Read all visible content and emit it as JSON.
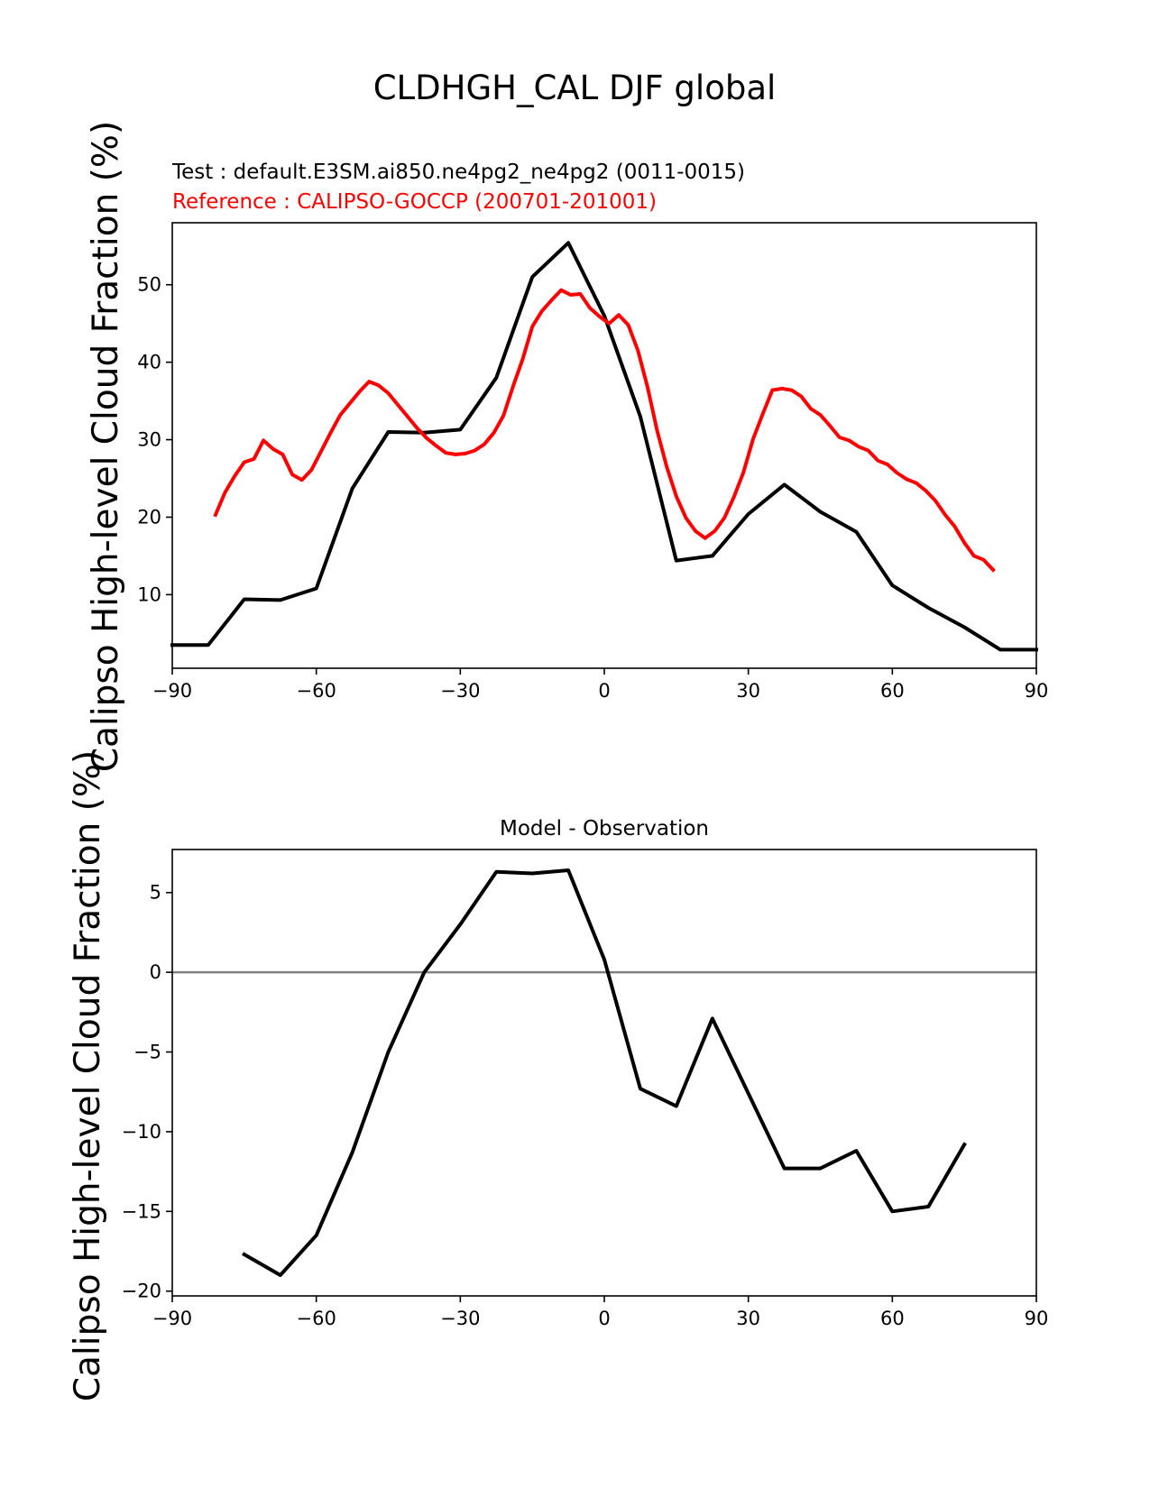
{
  "suptitle": "CLDHGH_CAL DJF global",
  "chart_data": [
    {
      "type": "line",
      "test_label": "Test : default.E3SM.ai850.ne4pg2_ne4pg2 (0011-0015)",
      "ref_label": "Reference : CALIPSO-GOCCP (200701-201001)",
      "ylabel": "Calipso High-level Cloud Fraction (%)",
      "xlim": [
        -90,
        90
      ],
      "ylim": [
        0.5,
        58
      ],
      "xticks": [
        -90,
        -60,
        -30,
        0,
        30,
        60,
        90
      ],
      "xtick_labels": [
        "−90",
        "−60",
        "−30",
        "0",
        "30",
        "60",
        "90"
      ],
      "yticks": [
        10,
        20,
        30,
        40,
        50
      ],
      "ytick_labels": [
        "10",
        "20",
        "30",
        "40",
        "50"
      ],
      "series": [
        {
          "name": "Test",
          "color": "#000000",
          "x": [
            -90,
            -82.5,
            -75,
            -67.5,
            -60,
            -52.5,
            -45,
            -37.5,
            -30,
            -22.5,
            -15,
            -7.5,
            0,
            7.5,
            15,
            22.5,
            30,
            37.5,
            45,
            52.5,
            60,
            67.5,
            75,
            82.5,
            90
          ],
          "y": [
            3.5,
            3.5,
            9.4,
            9.3,
            10.8,
            23.7,
            31.0,
            30.9,
            31.3,
            38.0,
            51.0,
            55.4,
            46.0,
            33.0,
            14.4,
            15.0,
            20.4,
            24.2,
            20.7,
            18.1,
            11.2,
            8.3,
            5.8,
            2.9,
            2.9
          ]
        },
        {
          "name": "Reference",
          "color": "#ff0000",
          "x": [
            -81,
            -79,
            -77,
            -75,
            -73,
            -71,
            -69,
            -67,
            -65,
            -63,
            -61,
            -59,
            -57,
            -55,
            -53,
            -51,
            -49,
            -47,
            -45,
            -43,
            -41,
            -39,
            -37,
            -35,
            -33,
            -31,
            -29,
            -27,
            -25,
            -23,
            -21,
            -19,
            -17,
            -15,
            -13,
            -11,
            -9,
            -7,
            -5,
            -3,
            -1,
            1,
            3,
            5,
            7,
            9,
            11,
            13,
            15,
            17,
            19,
            21,
            23,
            25,
            27,
            29,
            31,
            33,
            35,
            37,
            39,
            41,
            43,
            45,
            47,
            49,
            51,
            53,
            55,
            57,
            59,
            61,
            63,
            65,
            67,
            69,
            71,
            73,
            75,
            77,
            79,
            81
          ],
          "y": [
            20.3,
            23.2,
            25.3,
            27.1,
            27.5,
            29.9,
            28.8,
            28.1,
            25.5,
            24.8,
            26.1,
            28.5,
            30.9,
            33.2,
            34.7,
            36.2,
            37.5,
            37.0,
            36.0,
            34.5,
            33.0,
            31.5,
            30.2,
            29.2,
            28.3,
            28.1,
            28.2,
            28.6,
            29.4,
            30.9,
            33.1,
            36.9,
            40.4,
            44.6,
            46.6,
            48.0,
            49.3,
            48.7,
            48.8,
            47.0,
            45.9,
            45.0,
            46.1,
            44.8,
            41.5,
            36.8,
            31.2,
            26.5,
            22.7,
            19.9,
            18.2,
            17.3,
            18.2,
            19.9,
            22.6,
            25.8,
            30.1,
            33.3,
            36.4,
            36.6,
            36.4,
            35.6,
            34.0,
            33.2,
            31.8,
            30.3,
            29.9,
            29.1,
            28.6,
            27.3,
            26.8,
            25.7,
            24.9,
            24.4,
            23.4,
            22.1,
            20.3,
            18.8,
            16.7,
            15.0,
            14.5,
            13.2
          ]
        }
      ]
    },
    {
      "type": "line",
      "title": "Model - Observation",
      "ylabel": "Calipso High-level Cloud Fraction (%)",
      "xlim": [
        -90,
        90
      ],
      "ylim": [
        -20.3,
        7.7
      ],
      "xticks": [
        -90,
        -60,
        -30,
        0,
        30,
        60,
        90
      ],
      "xtick_labels": [
        "−90",
        "−60",
        "−30",
        "0",
        "30",
        "60",
        "90"
      ],
      "yticks": [
        -20,
        -15,
        -10,
        -5,
        0,
        5
      ],
      "ytick_labels": [
        "−20",
        "−15",
        "−10",
        "−5",
        "0",
        "5"
      ],
      "zero_line": {
        "value": 0,
        "color": "#808080"
      },
      "series": [
        {
          "name": "Difference",
          "color": "#000000",
          "x": [
            -75,
            -67.5,
            -60,
            -52.5,
            -45,
            -37.5,
            -30,
            -22.5,
            -15,
            -7.5,
            0,
            7.5,
            15,
            22.5,
            30,
            37.5,
            45,
            52.5,
            60,
            67.5,
            75
          ],
          "y": [
            -17.7,
            -19.0,
            -16.5,
            -11.3,
            -5.0,
            0.0,
            3.0,
            6.3,
            6.2,
            6.4,
            0.8,
            -7.3,
            -8.4,
            -2.9,
            -7.6,
            -12.3,
            -12.3,
            -11.2,
            -15.0,
            -14.7,
            -10.8
          ]
        }
      ]
    }
  ]
}
